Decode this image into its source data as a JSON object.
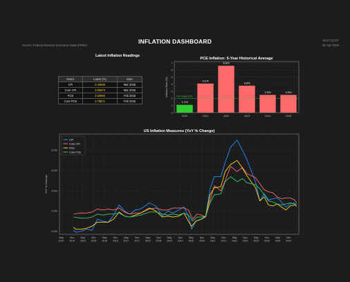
{
  "header": {
    "title": "INFLATION DASHBOARD",
    "source": "Source: Federal Reserve Economic Data (FRED)",
    "time": "16:47:01 ET",
    "date": "25-Apr-2025"
  },
  "table": {
    "title": "Latest Inflation Readings",
    "headers": [
      "Metric",
      "Latest (%)",
      "Date"
    ],
    "rows": [
      {
        "metric": "CPI",
        "latest": "2.40569",
        "date": "Mar 2025"
      },
      {
        "metric": "Core CPI",
        "latest": "2.80873",
        "date": "Mar 2025"
      },
      {
        "metric": "PCE",
        "latest": "2.53960",
        "date": "Feb 2025"
      },
      {
        "metric": "Core PCE",
        "latest": "2.75871",
        "date": "Feb 2025"
      }
    ]
  },
  "chart_data": [
    {
      "type": "bar",
      "title": "PCE Inflation: 5-Year Historical Average",
      "ylabel": "Inflation Rate (%)",
      "categories": [
        "2020",
        "2021",
        "2022",
        "2023",
        "2024",
        "2025"
      ],
      "values": [
        1.1,
        4.1,
        6.6,
        3.8,
        2.5,
        2.5
      ],
      "data_labels": [
        "1.1%",
        "4.1%",
        "6.6%",
        "3.8%",
        "2.5%",
        "2.5%"
      ],
      "ylim": [
        0,
        7.2
      ],
      "yticks": [
        0,
        1,
        2,
        3,
        4,
        5,
        6,
        7
      ],
      "reference_line": {
        "value": 2.0,
        "label": "Fed Target (2%)",
        "color": "#3fbf3f"
      },
      "bar_colors": [
        "#32cd32",
        "#ff6b6b",
        "#ff6b6b",
        "#ff6b6b",
        "#ff6b6b",
        "#ff6b6b"
      ],
      "grid": true
    },
    {
      "type": "line",
      "title": "US Inflation Measures (YoY % Change)",
      "ylabel": "YoY % Change",
      "ylim": [
        -0.3,
        9.6
      ],
      "yticks": [
        0,
        2,
        4,
        6,
        8
      ],
      "ytick_labels": [
        "0.0%",
        "2.0%",
        "4.0%",
        "6.0%",
        "8.0%"
      ],
      "xlim": [
        2014.25,
        2025.3
      ],
      "xticks": [
        {
          "x": 2014.33,
          "label": [
            "May",
            "2014"
          ]
        },
        {
          "x": 2014.83,
          "label": [
            "Nov",
            "2014"
          ]
        },
        {
          "x": 2015.33,
          "label": [
            "May",
            "2015"
          ]
        },
        {
          "x": 2015.83,
          "label": [
            "Nov",
            "2015"
          ]
        },
        {
          "x": 2016.33,
          "label": [
            "May",
            "2016"
          ]
        },
        {
          "x": 2016.83,
          "label": [
            "Nov",
            "2016"
          ]
        },
        {
          "x": 2017.33,
          "label": [
            "May",
            "2017"
          ]
        },
        {
          "x": 2017.83,
          "label": [
            "Nov",
            "2017"
          ]
        },
        {
          "x": 2018.33,
          "label": [
            "May",
            "2018"
          ]
        },
        {
          "x": 2018.83,
          "label": [
            "Nov",
            "2018"
          ]
        },
        {
          "x": 2019.33,
          "label": [
            "May",
            "2019"
          ]
        },
        {
          "x": 2019.83,
          "label": [
            "Nov",
            "2019"
          ]
        },
        {
          "x": 2020.33,
          "label": [
            "May",
            "2020"
          ]
        },
        {
          "x": 2020.83,
          "label": [
            "Nov",
            "2020"
          ]
        },
        {
          "x": 2021.33,
          "label": [
            "May",
            "2021"
          ]
        },
        {
          "x": 2021.83,
          "label": [
            "Nov",
            "2021"
          ]
        },
        {
          "x": 2022.33,
          "label": [
            "May",
            "2022"
          ]
        },
        {
          "x": 2022.83,
          "label": [
            "Nov",
            "2022"
          ]
        },
        {
          "x": 2023.33,
          "label": [
            "May",
            "2023"
          ]
        },
        {
          "x": 2023.83,
          "label": [
            "Nov",
            "2023"
          ]
        },
        {
          "x": 2024.33,
          "label": [
            "May",
            "2024"
          ]
        },
        {
          "x": 2024.83,
          "label": [
            "Nov",
            "2024"
          ]
        }
      ],
      "legend": "top-left",
      "grid": true,
      "series": [
        {
          "name": "CPI",
          "color": "#1e90ff",
          "points": [
            [
              2014.9,
              0.1
            ],
            [
              2015.0,
              -0.1
            ],
            [
              2015.25,
              0.0
            ],
            [
              2015.5,
              0.2
            ],
            [
              2015.75,
              0.1
            ],
            [
              2016.0,
              1.2
            ],
            [
              2016.25,
              1.0
            ],
            [
              2016.5,
              0.9
            ],
            [
              2016.75,
              1.6
            ],
            [
              2017.0,
              2.6
            ],
            [
              2017.25,
              2.0
            ],
            [
              2017.5,
              1.7
            ],
            [
              2017.75,
              2.1
            ],
            [
              2018.0,
              2.2
            ],
            [
              2018.4,
              2.8
            ],
            [
              2018.7,
              2.5
            ],
            [
              2019.0,
              1.5
            ],
            [
              2019.25,
              2.0
            ],
            [
              2019.5,
              1.8
            ],
            [
              2019.75,
              2.1
            ],
            [
              2020.0,
              2.4
            ],
            [
              2020.2,
              1.5
            ],
            [
              2020.35,
              0.2
            ],
            [
              2020.55,
              1.0
            ],
            [
              2020.8,
              1.2
            ],
            [
              2021.0,
              1.4
            ],
            [
              2021.2,
              4.2
            ],
            [
              2021.4,
              5.4
            ],
            [
              2021.7,
              5.4
            ],
            [
              2021.9,
              6.8
            ],
            [
              2022.15,
              8.3
            ],
            [
              2022.45,
              9.0
            ],
            [
              2022.65,
              8.2
            ],
            [
              2022.9,
              7.1
            ],
            [
              2023.1,
              6.0
            ],
            [
              2023.3,
              4.9
            ],
            [
              2023.5,
              3.0
            ],
            [
              2023.7,
              3.7
            ],
            [
              2023.9,
              3.1
            ],
            [
              2024.1,
              3.2
            ],
            [
              2024.3,
              3.3
            ],
            [
              2024.5,
              2.9
            ],
            [
              2024.7,
              2.4
            ],
            [
              2024.9,
              2.7
            ],
            [
              2025.1,
              2.8
            ],
            [
              2025.2,
              2.4
            ]
          ]
        },
        {
          "name": "Core CPI",
          "color": "#ff6b6b",
          "points": [
            [
              2014.9,
              1.7
            ],
            [
              2015.2,
              1.8
            ],
            [
              2015.5,
              1.8
            ],
            [
              2015.75,
              1.9
            ],
            [
              2016.0,
              2.2
            ],
            [
              2016.25,
              2.1
            ],
            [
              2016.5,
              2.2
            ],
            [
              2016.75,
              2.1
            ],
            [
              2017.0,
              2.3
            ],
            [
              2017.25,
              1.9
            ],
            [
              2017.5,
              1.7
            ],
            [
              2017.75,
              1.8
            ],
            [
              2018.0,
              1.8
            ],
            [
              2018.4,
              2.2
            ],
            [
              2018.7,
              2.3
            ],
            [
              2019.0,
              2.1
            ],
            [
              2019.25,
              2.1
            ],
            [
              2019.5,
              2.3
            ],
            [
              2019.75,
              2.3
            ],
            [
              2020.0,
              2.3
            ],
            [
              2020.2,
              2.1
            ],
            [
              2020.4,
              1.2
            ],
            [
              2020.6,
              1.7
            ],
            [
              2020.8,
              1.6
            ],
            [
              2021.0,
              1.4
            ],
            [
              2021.2,
              3.0
            ],
            [
              2021.4,
              4.5
            ],
            [
              2021.7,
              4.0
            ],
            [
              2021.9,
              5.0
            ],
            [
              2022.15,
              6.4
            ],
            [
              2022.45,
              5.9
            ],
            [
              2022.7,
              6.3
            ],
            [
              2022.9,
              5.7
            ],
            [
              2023.1,
              5.5
            ],
            [
              2023.3,
              5.3
            ],
            [
              2023.5,
              4.7
            ],
            [
              2023.7,
              4.1
            ],
            [
              2023.9,
              3.9
            ],
            [
              2024.1,
              3.8
            ],
            [
              2024.3,
              3.4
            ],
            [
              2024.5,
              3.2
            ],
            [
              2024.7,
              3.3
            ],
            [
              2024.9,
              3.3
            ],
            [
              2025.1,
              3.1
            ],
            [
              2025.2,
              2.8
            ]
          ]
        },
        {
          "name": "PCE",
          "color": "#ffd21f",
          "points": [
            [
              2014.9,
              0.4
            ],
            [
              2015.0,
              0.2
            ],
            [
              2015.25,
              0.2
            ],
            [
              2015.5,
              0.3
            ],
            [
              2015.75,
              0.5
            ],
            [
              2016.0,
              0.9
            ],
            [
              2016.25,
              0.9
            ],
            [
              2016.5,
              0.9
            ],
            [
              2016.75,
              1.2
            ],
            [
              2017.0,
              1.9
            ],
            [
              2017.25,
              1.5
            ],
            [
              2017.5,
              1.4
            ],
            [
              2017.75,
              1.6
            ],
            [
              2018.0,
              1.8
            ],
            [
              2018.4,
              2.3
            ],
            [
              2018.7,
              2.0
            ],
            [
              2019.0,
              1.4
            ],
            [
              2019.25,
              1.5
            ],
            [
              2019.5,
              1.4
            ],
            [
              2019.75,
              1.5
            ],
            [
              2020.0,
              1.8
            ],
            [
              2020.2,
              1.0
            ],
            [
              2020.35,
              0.5
            ],
            [
              2020.55,
              1.0
            ],
            [
              2020.8,
              1.2
            ],
            [
              2021.0,
              1.5
            ],
            [
              2021.2,
              3.6
            ],
            [
              2021.4,
              4.3
            ],
            [
              2021.7,
              4.4
            ],
            [
              2021.9,
              5.9
            ],
            [
              2022.15,
              6.6
            ],
            [
              2022.45,
              7.0
            ],
            [
              2022.65,
              6.4
            ],
            [
              2022.9,
              5.5
            ],
            [
              2023.1,
              4.9
            ],
            [
              2023.3,
              4.3
            ],
            [
              2023.5,
              3.0
            ],
            [
              2023.7,
              3.4
            ],
            [
              2023.9,
              2.6
            ],
            [
              2024.1,
              2.5
            ],
            [
              2024.3,
              2.7
            ],
            [
              2024.5,
              2.4
            ],
            [
              2024.7,
              2.1
            ],
            [
              2024.9,
              2.5
            ],
            [
              2025.1,
              2.6
            ],
            [
              2025.2,
              2.5
            ]
          ]
        },
        {
          "name": "Core PCE",
          "color": "#2ecc71",
          "points": [
            [
              2014.9,
              1.4
            ],
            [
              2015.25,
              1.3
            ],
            [
              2015.5,
              1.3
            ],
            [
              2015.75,
              1.4
            ],
            [
              2016.0,
              1.7
            ],
            [
              2016.25,
              1.6
            ],
            [
              2016.5,
              1.7
            ],
            [
              2016.75,
              1.7
            ],
            [
              2017.0,
              1.8
            ],
            [
              2017.25,
              1.5
            ],
            [
              2017.5,
              1.4
            ],
            [
              2017.75,
              1.5
            ],
            [
              2018.0,
              1.6
            ],
            [
              2018.4,
              1.9
            ],
            [
              2018.7,
              1.9
            ],
            [
              2019.0,
              1.7
            ],
            [
              2019.25,
              1.6
            ],
            [
              2019.5,
              1.7
            ],
            [
              2019.75,
              1.6
            ],
            [
              2020.0,
              1.8
            ],
            [
              2020.2,
              1.6
            ],
            [
              2020.4,
              1.0
            ],
            [
              2020.6,
              1.4
            ],
            [
              2020.8,
              1.4
            ],
            [
              2021.0,
              1.5
            ],
            [
              2021.2,
              2.8
            ],
            [
              2021.4,
              3.6
            ],
            [
              2021.7,
              3.7
            ],
            [
              2021.9,
              4.9
            ],
            [
              2022.15,
              5.4
            ],
            [
              2022.45,
              4.9
            ],
            [
              2022.7,
              5.2
            ],
            [
              2022.9,
              4.8
            ],
            [
              2023.1,
              4.7
            ],
            [
              2023.3,
              4.6
            ],
            [
              2023.5,
              4.2
            ],
            [
              2023.7,
              3.6
            ],
            [
              2023.9,
              3.0
            ],
            [
              2024.1,
              2.9
            ],
            [
              2024.3,
              2.7
            ],
            [
              2024.5,
              2.6
            ],
            [
              2024.7,
              2.7
            ],
            [
              2024.9,
              2.8
            ],
            [
              2025.1,
              2.7
            ],
            [
              2025.2,
              2.7
            ]
          ]
        }
      ]
    }
  ]
}
